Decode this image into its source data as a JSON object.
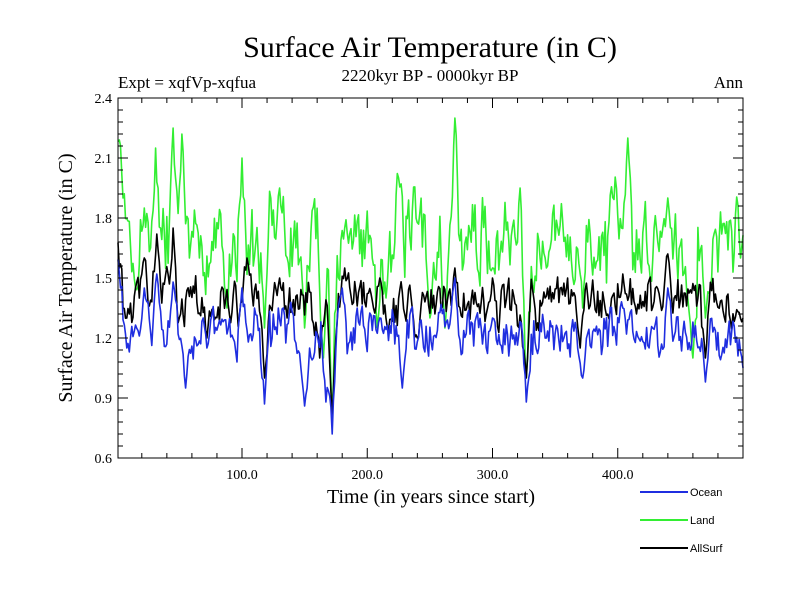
{
  "chart_data": {
    "type": "line",
    "title": "Surface Air Temperature (in C)",
    "subtitle": "2220kyr BP - 0000kyr BP",
    "left_label": "Expt = xqfVp-xqfua",
    "right_label": "Ann",
    "xlabel": "Time (in years since start)",
    "ylabel": "Surface Air Temperature (in C)",
    "xlim": [
      1,
      500
    ],
    "ylim": [
      0.6,
      2.4
    ],
    "x_ticks": [
      100,
      200,
      300,
      400
    ],
    "x_tick_labels": [
      "100.0",
      "200.0",
      "300.0",
      "400.0"
    ],
    "y_ticks": [
      0.6,
      0.9,
      1.2,
      1.5,
      1.8,
      2.1,
      2.4
    ],
    "y_tick_labels": [
      "0.6",
      "0.9",
      "1.2",
      "1.5",
      "1.8",
      "2.1",
      "2.4"
    ],
    "x": {
      "start": 1,
      "step": 1,
      "count": 500
    },
    "series": [
      {
        "name": "Land",
        "color": "#33ee33",
        "base": 1.68,
        "amplitude": 0.17,
        "seed": 7,
        "points": [
          [
            1,
            2.0
          ],
          [
            3,
            2.3
          ],
          [
            5,
            1.9
          ],
          [
            15,
            1.45
          ],
          [
            22,
            1.85
          ],
          [
            31,
            2.15
          ],
          [
            45,
            2.25
          ],
          [
            52,
            2.22
          ],
          [
            66,
            1.6
          ],
          [
            88,
            1.35
          ],
          [
            100,
            2.1
          ],
          [
            118,
            1.25
          ],
          [
            130,
            1.95
          ],
          [
            150,
            1.25
          ],
          [
            165,
            1.1
          ],
          [
            172,
            0.78
          ],
          [
            182,
            1.75
          ],
          [
            208,
            1.25
          ],
          [
            225,
            2.0
          ],
          [
            250,
            1.3
          ],
          [
            262,
            1.25
          ],
          [
            270,
            2.3
          ],
          [
            300,
            1.55
          ],
          [
            322,
            1.95
          ],
          [
            327,
            1.0
          ],
          [
            343,
            1.55
          ],
          [
            372,
            1.35
          ],
          [
            403,
            1.75
          ],
          [
            408,
            2.2
          ],
          [
            436,
            1.75
          ],
          [
            440,
            1.9
          ],
          [
            460,
            1.1
          ],
          [
            470,
            1.3
          ],
          [
            496,
            2.05
          ],
          [
            498,
            1.6
          ]
        ]
      },
      {
        "name": "AllSurf",
        "color": "#000000",
        "base": 1.37,
        "amplitude": 0.09,
        "seed": 13,
        "points": [
          [
            1,
            1.8
          ],
          [
            2,
            1.55
          ],
          [
            8,
            1.3
          ],
          [
            22,
            1.6
          ],
          [
            32,
            1.72
          ],
          [
            45,
            1.75
          ],
          [
            72,
            1.2
          ],
          [
            104,
            1.6
          ],
          [
            118,
            1.0
          ],
          [
            130,
            1.5
          ],
          [
            162,
            1.1
          ],
          [
            172,
            0.8
          ],
          [
            182,
            1.55
          ],
          [
            210,
            1.5
          ],
          [
            240,
            1.2
          ],
          [
            270,
            1.55
          ],
          [
            300,
            1.5
          ],
          [
            327,
            1.0
          ],
          [
            342,
            1.4
          ],
          [
            370,
            1.15
          ],
          [
            404,
            1.52
          ],
          [
            440,
            1.62
          ],
          [
            470,
            1.1
          ],
          [
            500,
            1.3
          ]
        ]
      },
      {
        "name": "Ocean",
        "color": "#1f2ee0",
        "base": 1.23,
        "amplitude": 0.09,
        "seed": 29,
        "points": [
          [
            1,
            1.65
          ],
          [
            3,
            1.45
          ],
          [
            8,
            1.15
          ],
          [
            22,
            1.45
          ],
          [
            32,
            1.52
          ],
          [
            45,
            1.48
          ],
          [
            55,
            0.95
          ],
          [
            72,
            1.15
          ],
          [
            100,
            1.45
          ],
          [
            118,
            0.87
          ],
          [
            150,
            0.86
          ],
          [
            167,
            0.88
          ],
          [
            172,
            0.72
          ],
          [
            180,
            1.45
          ],
          [
            210,
            1.3
          ],
          [
            228,
            0.95
          ],
          [
            270,
            1.5
          ],
          [
            300,
            1.3
          ],
          [
            327,
            0.88
          ],
          [
            343,
            1.2
          ],
          [
            372,
            1.0
          ],
          [
            404,
            1.35
          ],
          [
            440,
            1.45
          ],
          [
            470,
            0.98
          ],
          [
            500,
            1.05
          ]
        ]
      }
    ],
    "legend": {
      "position": "bottom-right",
      "entries": [
        {
          "name": "Ocean",
          "color": "#1f2ee0"
        },
        {
          "name": "Land",
          "color": "#33ee33"
        },
        {
          "name": "AllSurf",
          "color": "#000000"
        }
      ]
    }
  }
}
